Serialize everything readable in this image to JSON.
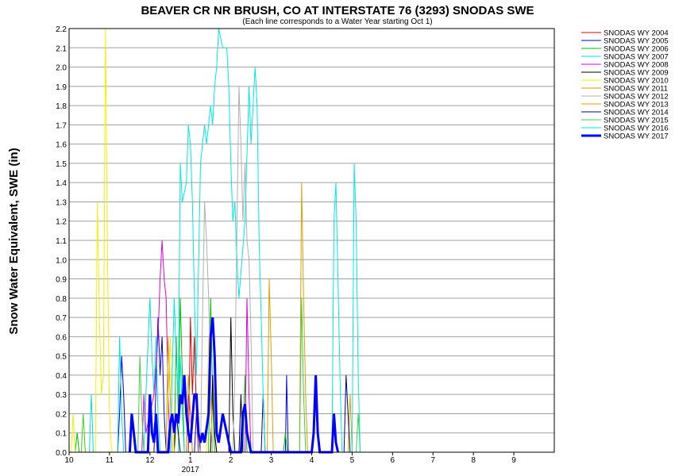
{
  "chart_data": {
    "type": "line",
    "title": "BEAVER CR NR BRUSH, CO AT INTERSTATE 76 (3293) SNODAS SWE",
    "subtitle": "(Each line corresponds to a Water Year starting Oct 1)",
    "ylabel": "Snow Water Equivalent, SWE (in)",
    "xlabel": "",
    "ylim": [
      0,
      2.2
    ],
    "yticks": [
      "0.0",
      "0.1",
      "0.2",
      "0.3",
      "0.4",
      "0.5",
      "0.6",
      "0.7",
      "0.8",
      "0.9",
      "1.0",
      "1.1",
      "1.2",
      "1.3",
      "1.4",
      "1.5",
      "1.6",
      "1.7",
      "1.8",
      "1.9",
      "2.0",
      "2.1",
      "2.2"
    ],
    "x_axis": {
      "start_month": "10",
      "end_month": "9",
      "year_label": "2017"
    },
    "xticks": [
      "10",
      "11",
      "12",
      "1",
      "2",
      "3",
      "4",
      "5",
      "6",
      "7",
      "8",
      "9"
    ],
    "grid": "horizontal",
    "legend_position": "right",
    "series": [
      {
        "name": "SNODAS WY 2004",
        "color": "#e00000",
        "width": 1,
        "points": [
          [
            2.95,
            0
          ],
          [
            3.0,
            0.7
          ],
          [
            3.05,
            0.3
          ],
          [
            3.1,
            0.6
          ],
          [
            3.15,
            0.2
          ],
          [
            3.2,
            0
          ],
          [
            3.5,
            0
          ],
          [
            3.55,
            0.3
          ],
          [
            3.6,
            0.1
          ],
          [
            3.65,
            0
          ]
        ]
      },
      {
        "name": "SNODAS WY 2005",
        "color": "#0000e0",
        "width": 1,
        "points": [
          [
            1.2,
            0
          ],
          [
            1.25,
            0.2
          ],
          [
            1.3,
            0.5
          ],
          [
            1.35,
            0.3
          ],
          [
            1.4,
            0
          ],
          [
            2.1,
            0
          ],
          [
            2.2,
            0.7
          ],
          [
            2.25,
            0.4
          ],
          [
            2.3,
            0.6
          ],
          [
            2.35,
            0.2
          ],
          [
            2.4,
            0
          ],
          [
            3.1,
            0
          ],
          [
            3.15,
            0.2
          ],
          [
            3.25,
            0
          ],
          [
            5.35,
            0
          ],
          [
            5.38,
            0.4
          ],
          [
            5.42,
            0
          ]
        ]
      },
      {
        "name": "SNODAS WY 2006",
        "color": "#00c000",
        "width": 1,
        "points": [
          [
            0.15,
            0
          ],
          [
            0.2,
            0.1
          ],
          [
            0.25,
            0
          ],
          [
            2.6,
            0
          ],
          [
            2.65,
            0.6
          ],
          [
            2.7,
            0.2
          ],
          [
            2.75,
            0.8
          ],
          [
            2.8,
            0.4
          ],
          [
            2.85,
            0
          ],
          [
            3.45,
            0
          ],
          [
            3.5,
            0.8
          ],
          [
            3.55,
            0.3
          ],
          [
            3.6,
            0
          ],
          [
            4.3,
            0
          ],
          [
            4.35,
            0.4
          ],
          [
            4.4,
            0
          ],
          [
            5.3,
            0
          ],
          [
            5.35,
            0.1
          ],
          [
            5.4,
            0
          ]
        ]
      },
      {
        "name": "SNODAS WY 2007",
        "color": "#00e0e0",
        "width": 1,
        "points": [
          [
            0.5,
            0
          ],
          [
            0.55,
            0.3
          ],
          [
            0.6,
            0
          ],
          [
            1.2,
            0
          ],
          [
            1.25,
            0.6
          ],
          [
            1.3,
            0.2
          ],
          [
            1.35,
            0
          ],
          [
            1.85,
            0
          ],
          [
            1.9,
            0.3
          ],
          [
            2.0,
            0.8
          ],
          [
            2.05,
            0.5
          ],
          [
            2.1,
            0.3
          ],
          [
            2.15,
            0.6
          ],
          [
            2.2,
            0.2
          ],
          [
            2.25,
            0
          ],
          [
            2.7,
            0
          ],
          [
            2.75,
            0.5
          ],
          [
            2.8,
            0.2
          ],
          [
            2.85,
            0
          ]
        ]
      },
      {
        "name": "SNODAS WY 2008",
        "color": "#e000e0",
        "width": 1,
        "points": [
          [
            1.8,
            0
          ],
          [
            1.85,
            0.3
          ],
          [
            1.9,
            0.1
          ],
          [
            2.1,
            0.3
          ],
          [
            2.2,
            0.6
          ],
          [
            2.25,
            0.9
          ],
          [
            2.3,
            1.1
          ],
          [
            2.35,
            0.9
          ],
          [
            2.4,
            0.8
          ],
          [
            2.45,
            0.3
          ],
          [
            2.5,
            0
          ],
          [
            2.9,
            0
          ],
          [
            2.95,
            0.3
          ],
          [
            3.0,
            0.2
          ],
          [
            3.05,
            0
          ],
          [
            4.35,
            0
          ],
          [
            4.4,
            0.8
          ],
          [
            4.45,
            0.3
          ],
          [
            4.5,
            0
          ]
        ]
      },
      {
        "name": "SNODAS WY 2009",
        "color": "#000000",
        "width": 1,
        "points": [
          [
            2.6,
            0
          ],
          [
            2.65,
            0.2
          ],
          [
            2.7,
            0.1
          ],
          [
            2.75,
            0
          ],
          [
            3.5,
            0
          ],
          [
            3.55,
            0.4
          ],
          [
            3.6,
            0.1
          ],
          [
            3.65,
            0
          ],
          [
            3.95,
            0
          ],
          [
            4.0,
            0.7
          ],
          [
            4.05,
            0.2
          ],
          [
            4.1,
            0
          ],
          [
            4.2,
            0
          ],
          [
            4.25,
            0.3
          ],
          [
            4.3,
            0
          ]
        ]
      },
      {
        "name": "SNODAS WY 2010",
        "color": "#f0f000",
        "width": 1,
        "points": [
          [
            0.05,
            0
          ],
          [
            0.1,
            0.2
          ],
          [
            0.15,
            0
          ],
          [
            0.3,
            0
          ],
          [
            0.35,
            0.2
          ],
          [
            0.4,
            0
          ],
          [
            0.65,
            0
          ],
          [
            0.7,
            1.3
          ],
          [
            0.75,
            0.7
          ],
          [
            0.8,
            0.3
          ],
          [
            0.85,
            0.4
          ],
          [
            0.9,
            2.2
          ],
          [
            0.95,
            1.0
          ],
          [
            1.0,
            0.2
          ],
          [
            1.05,
            0
          ],
          [
            2.4,
            0
          ],
          [
            2.5,
            0.6
          ],
          [
            2.55,
            0.2
          ],
          [
            2.6,
            0
          ],
          [
            3.4,
            0
          ],
          [
            3.45,
            0.6
          ],
          [
            3.5,
            0.2
          ],
          [
            3.55,
            0
          ]
        ]
      },
      {
        "name": "SNODAS WY 2011",
        "color": "#c8a000",
        "width": 1,
        "points": [
          [
            2.9,
            0
          ],
          [
            2.95,
            0.4
          ],
          [
            3.0,
            0.2
          ],
          [
            3.05,
            0
          ]
        ]
      },
      {
        "name": "SNODAS WY 2012",
        "color": "#b0b0b0",
        "width": 1,
        "points": [
          [
            3.25,
            0
          ],
          [
            3.3,
            0.7
          ],
          [
            3.35,
            1.3
          ],
          [
            3.4,
            1.1
          ],
          [
            3.45,
            0.8
          ],
          [
            3.5,
            0.4
          ],
          [
            3.55,
            0
          ],
          [
            4.05,
            0
          ],
          [
            4.1,
            0.4
          ],
          [
            4.2,
            1.9
          ],
          [
            4.25,
            1.6
          ],
          [
            4.3,
            1.2
          ],
          [
            4.35,
            1.5
          ],
          [
            4.4,
            1.1
          ],
          [
            4.45,
            1.0
          ],
          [
            4.5,
            0.6
          ],
          [
            4.55,
            0
          ]
        ]
      },
      {
        "name": "SNODAS WY 2013",
        "color": "#e0a000",
        "width": 1,
        "points": [
          [
            2.4,
            0
          ],
          [
            2.45,
            0.6
          ],
          [
            2.5,
            0.3
          ],
          [
            2.55,
            0
          ],
          [
            4.9,
            0
          ],
          [
            4.95,
            0.9
          ],
          [
            5.0,
            0.5
          ],
          [
            5.05,
            0
          ],
          [
            5.7,
            0
          ],
          [
            5.75,
            1.4
          ],
          [
            5.8,
            0.8
          ],
          [
            5.85,
            0.3
          ],
          [
            5.9,
            0
          ],
          [
            6.9,
            0
          ],
          [
            6.95,
            0.3
          ],
          [
            7.0,
            0
          ]
        ]
      },
      {
        "name": "SNODAS WY 2014",
        "color": "#000080",
        "width": 1,
        "points": [
          [
            4.75,
            0
          ],
          [
            4.8,
            0.3
          ],
          [
            4.85,
            0
          ],
          [
            6.8,
            0
          ],
          [
            6.85,
            0.4
          ],
          [
            6.9,
            0.2
          ],
          [
            6.95,
            0
          ]
        ]
      },
      {
        "name": "SNODAS WY 2015",
        "color": "#40d040",
        "width": 1,
        "points": [
          [
            0.3,
            0
          ],
          [
            0.35,
            0.2
          ],
          [
            0.4,
            0
          ],
          [
            1.7,
            0
          ],
          [
            1.75,
            0.5
          ],
          [
            1.8,
            0.2
          ],
          [
            1.85,
            0
          ],
          [
            5.7,
            0
          ],
          [
            5.75,
            0.8
          ],
          [
            5.8,
            0.3
          ],
          [
            5.85,
            0
          ],
          [
            7.1,
            0
          ],
          [
            7.15,
            0.2
          ],
          [
            7.2,
            0
          ]
        ]
      },
      {
        "name": "SNODAS WY 2016",
        "color": "#00e8e8",
        "width": 1,
        "points": [
          [
            2.5,
            0
          ],
          [
            2.55,
            0.4
          ],
          [
            2.6,
            0.8
          ],
          [
            2.65,
            0.5
          ],
          [
            2.7,
            0.3
          ],
          [
            2.75,
            1.5
          ],
          [
            2.8,
            1.3
          ],
          [
            2.9,
            1.4
          ],
          [
            2.95,
            1.7
          ],
          [
            3.0,
            1.6
          ],
          [
            3.05,
            1.3
          ],
          [
            3.1,
            0.8
          ],
          [
            3.15,
            0.4
          ],
          [
            3.25,
            1.5
          ],
          [
            3.3,
            1.6
          ],
          [
            3.35,
            1.7
          ],
          [
            3.4,
            1.6
          ],
          [
            3.45,
            1.7
          ],
          [
            3.5,
            1.8
          ],
          [
            3.55,
            1.7
          ],
          [
            3.6,
            1.9
          ],
          [
            3.65,
            2.0
          ],
          [
            3.7,
            2.2
          ],
          [
            3.8,
            2.1
          ],
          [
            3.9,
            2.1
          ],
          [
            3.95,
            1.9
          ],
          [
            4.0,
            1.5
          ],
          [
            4.05,
            1.2
          ],
          [
            4.1,
            1.3
          ],
          [
            4.15,
            1.0
          ],
          [
            4.2,
            0.8
          ],
          [
            4.35,
            1.2
          ],
          [
            4.45,
            1.9
          ],
          [
            4.5,
            1.6
          ],
          [
            4.55,
            1.8
          ],
          [
            4.6,
            2.0
          ],
          [
            4.65,
            1.8
          ],
          [
            4.7,
            1.1
          ],
          [
            4.75,
            0.7
          ],
          [
            4.8,
            0.3
          ],
          [
            4.85,
            0
          ],
          [
            6.5,
            0
          ],
          [
            6.55,
            1.2
          ],
          [
            6.6,
            1.4
          ],
          [
            6.65,
            0.9
          ],
          [
            6.7,
            0.4
          ],
          [
            6.75,
            0
          ],
          [
            7.0,
            0
          ],
          [
            7.05,
            1.5
          ],
          [
            7.1,
            1.2
          ],
          [
            7.15,
            0.4
          ],
          [
            7.2,
            0
          ]
        ]
      },
      {
        "name": "SNODAS WY 2017",
        "color": "#0000ff",
        "width": 3,
        "points": [
          [
            1.5,
            0
          ],
          [
            1.55,
            0.2
          ],
          [
            1.6,
            0.1
          ],
          [
            1.65,
            0
          ],
          [
            1.95,
            0
          ],
          [
            2.0,
            0.3
          ],
          [
            2.05,
            0.1
          ],
          [
            2.1,
            0.05
          ],
          [
            2.15,
            0.2
          ],
          [
            2.2,
            0
          ],
          [
            2.45,
            0
          ],
          [
            2.5,
            0.15
          ],
          [
            2.55,
            0.2
          ],
          [
            2.6,
            0.1
          ],
          [
            2.65,
            0.2
          ],
          [
            2.7,
            0.15
          ],
          [
            2.75,
            0.3
          ],
          [
            2.8,
            0.25
          ],
          [
            2.85,
            0.4
          ],
          [
            2.9,
            0.2
          ],
          [
            2.95,
            0.1
          ],
          [
            3.0,
            0.05
          ],
          [
            3.1,
            0.3
          ],
          [
            3.15,
            0.3
          ],
          [
            3.2,
            0.1
          ],
          [
            3.25,
            0.05
          ],
          [
            3.3,
            0.1
          ],
          [
            3.35,
            0.05
          ],
          [
            3.45,
            0.2
          ],
          [
            3.5,
            0.6
          ],
          [
            3.55,
            0.7
          ],
          [
            3.6,
            0.5
          ],
          [
            3.65,
            0.1
          ],
          [
            3.7,
            0.05
          ],
          [
            3.8,
            0.2
          ],
          [
            3.85,
            0.15
          ],
          [
            3.9,
            0.1
          ],
          [
            3.95,
            0.05
          ],
          [
            4.0,
            0
          ],
          [
            4.25,
            0
          ],
          [
            4.3,
            0.2
          ],
          [
            4.35,
            0.25
          ],
          [
            4.4,
            0.1
          ],
          [
            4.45,
            0.05
          ],
          [
            4.5,
            0
          ],
          [
            6.0,
            0
          ],
          [
            6.05,
            0.1
          ],
          [
            6.1,
            0.4
          ],
          [
            6.15,
            0.1
          ],
          [
            6.2,
            0
          ],
          [
            6.5,
            0
          ],
          [
            6.55,
            0.2
          ],
          [
            6.6,
            0.05
          ],
          [
            6.65,
            0
          ]
        ]
      }
    ]
  }
}
